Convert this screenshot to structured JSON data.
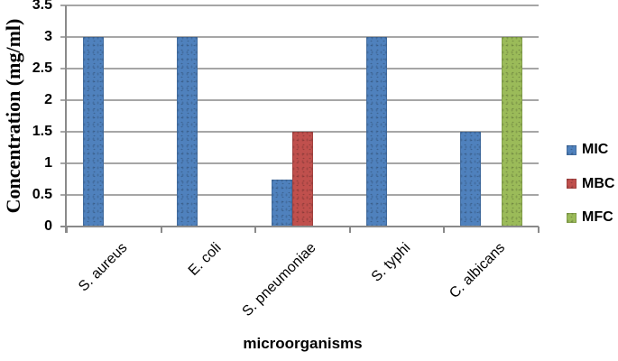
{
  "figure": {
    "background": "#ffffff",
    "text_color": "#000000"
  },
  "chart_data": {
    "type": "bar",
    "title": "",
    "categories": [
      "S. aureus",
      "E. coli",
      "S. pneumoniae",
      "S. typhi",
      "C. albicans"
    ],
    "series": [
      {
        "name": "MIC",
        "color": "#4f81bd",
        "values": [
          3,
          3,
          0.75,
          3,
          1.5
        ]
      },
      {
        "name": "MBC",
        "color": "#c0504d",
        "values": [
          null,
          null,
          1.5,
          null,
          null
        ]
      },
      {
        "name": "MFC",
        "color": "#9bbb59",
        "values": [
          null,
          null,
          null,
          null,
          3
        ]
      }
    ],
    "xlabel": "microorganisms",
    "ylabel": "Concentration (mg/ml)",
    "ylim": [
      0,
      3.5
    ],
    "ytick_step": 0.5,
    "ytick_labels": [
      "0",
      "0.5",
      "1",
      "1.5",
      "2",
      "2.5",
      "3",
      "3.5"
    ],
    "grid": true,
    "legend_position": "right",
    "gridline_color": "#a6a6a6",
    "axis_line_color": "#8a8a8a"
  }
}
